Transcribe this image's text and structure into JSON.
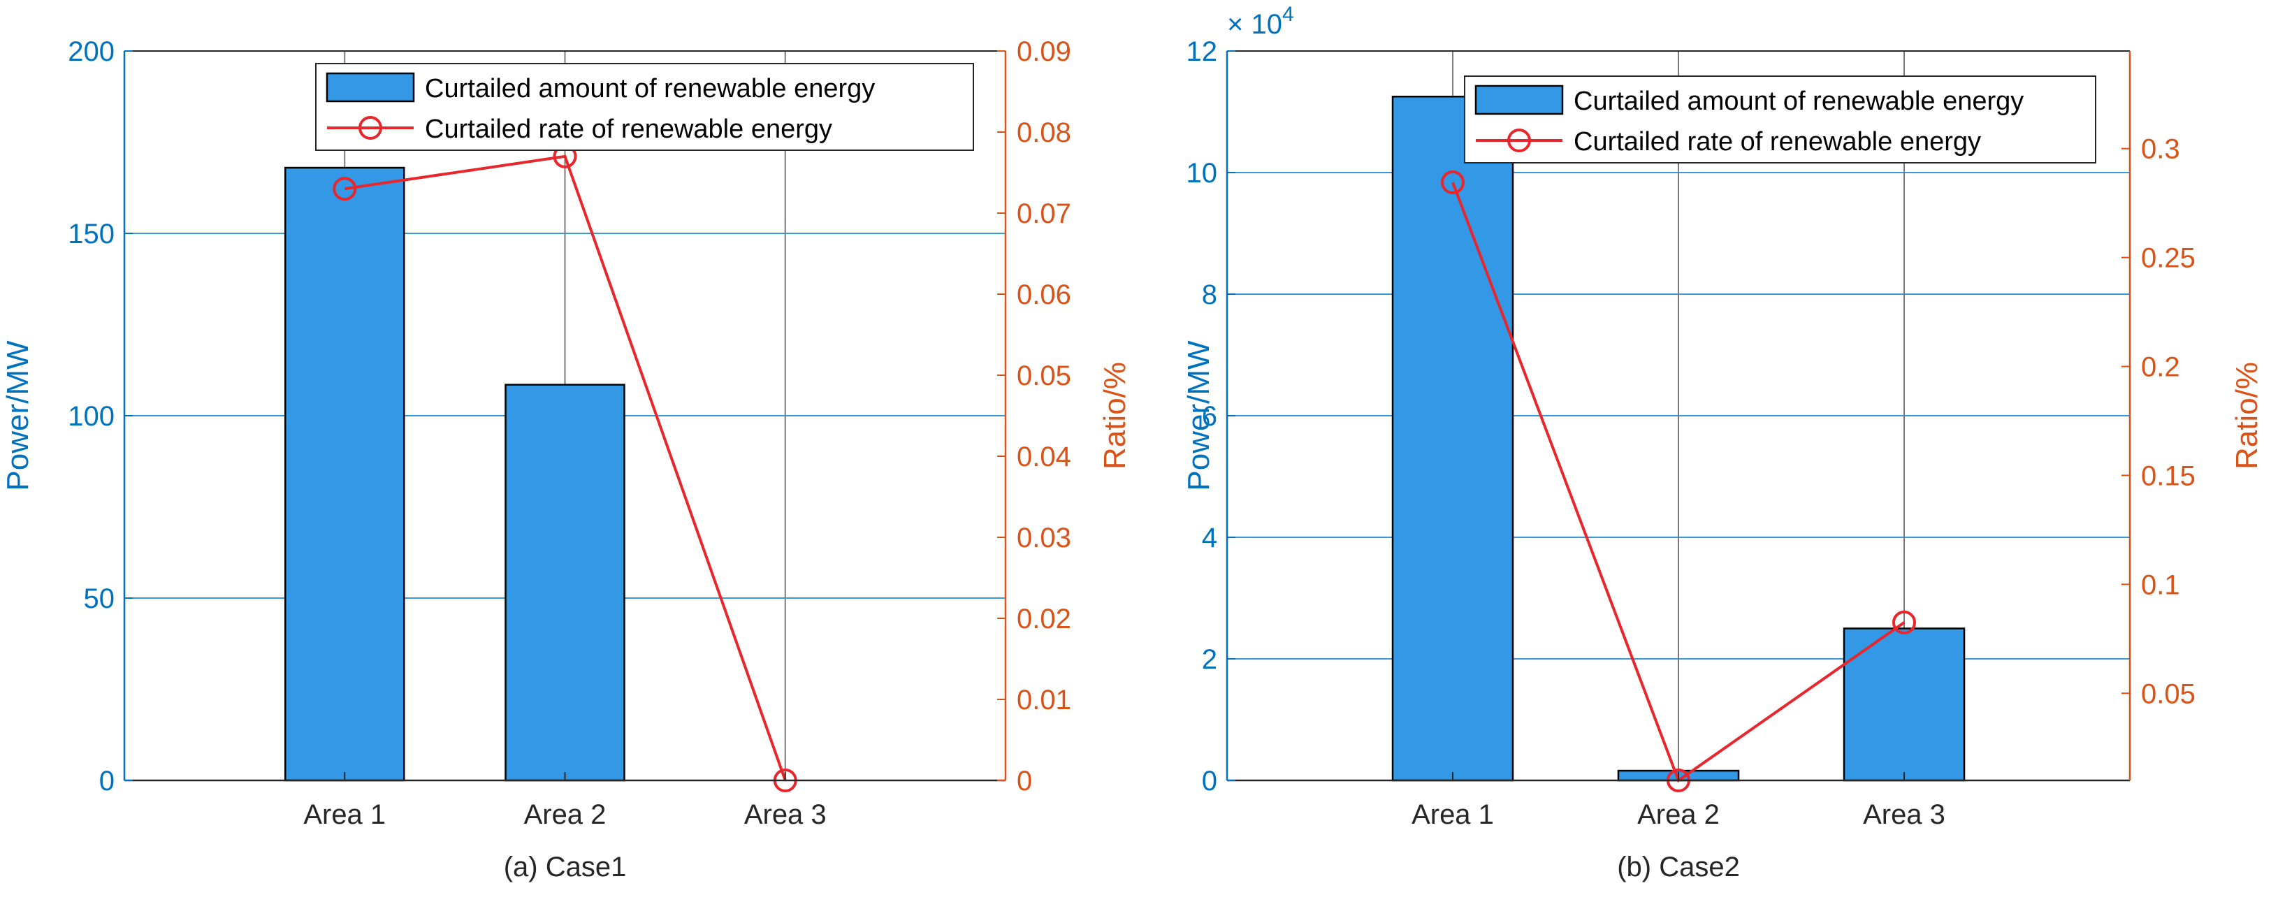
{
  "colors": {
    "bar": "#3399E6",
    "bar_edge": "#000000",
    "line": "#E8262B",
    "left_axis": "#0072BD",
    "right_axis": "#D95319",
    "grid_y": "#3A9AD9",
    "grid_x": "#7A7A7A"
  },
  "chart_data": [
    {
      "type": "bar",
      "caption": "(a) Case1",
      "categories": [
        "Area 1",
        "Area 2",
        "Area 3"
      ],
      "ylabel_left": "Power/MW",
      "ylabel_right": "Ratio/%",
      "ylim_left": [
        0,
        200
      ],
      "yticks_left": [
        {
          "v": 0,
          "t": "0"
        },
        {
          "v": 50,
          "t": "50"
        },
        {
          "v": 100,
          "t": "100"
        },
        {
          "v": 150,
          "t": "150"
        },
        {
          "v": 200,
          "t": "200"
        }
      ],
      "ylim_right": [
        0,
        0.09
      ],
      "yticks_right": [
        {
          "v": 0,
          "t": "0"
        },
        {
          "v": 0.01,
          "t": "0.01"
        },
        {
          "v": 0.02,
          "t": "0.02"
        },
        {
          "v": 0.03,
          "t": "0.03"
        },
        {
          "v": 0.04,
          "t": "0.04"
        },
        {
          "v": 0.05,
          "t": "0.05"
        },
        {
          "v": 0.06,
          "t": "0.06"
        },
        {
          "v": 0.07,
          "t": "0.07"
        },
        {
          "v": 0.08,
          "t": "0.08"
        },
        {
          "v": 0.09,
          "t": "0.09"
        }
      ],
      "exponent_label": "",
      "grid": true,
      "legend_position": "top-right",
      "series": [
        {
          "name": "Curtailed amount of renewable energy",
          "kind": "bar",
          "axis": "left",
          "values": [
            168,
            108.5,
            0
          ]
        },
        {
          "name": "Curtailed rate of renewable energy",
          "kind": "line",
          "axis": "right",
          "values": [
            0.073,
            0.077,
            0
          ]
        }
      ]
    },
    {
      "type": "bar",
      "caption": "(b) Case2",
      "categories": [
        "Area 1",
        "Area 2",
        "Area 3"
      ],
      "ylabel_left": "Power/MW",
      "ylabel_right": "Ratio/%",
      "ylim_left": [
        0,
        120000
      ],
      "yticks_left": [
        {
          "v": 0,
          "t": "0"
        },
        {
          "v": 20000,
          "t": "2"
        },
        {
          "v": 40000,
          "t": "4"
        },
        {
          "v": 60000,
          "t": "6"
        },
        {
          "v": 80000,
          "t": "8"
        },
        {
          "v": 100000,
          "t": "10"
        },
        {
          "v": 120000,
          "t": "12"
        }
      ],
      "ylim_right": [
        0.01,
        0.3448
      ],
      "yticks_right": [
        {
          "v": 0.05,
          "t": "0.05"
        },
        {
          "v": 0.1,
          "t": "0.1"
        },
        {
          "v": 0.15,
          "t": "0.15"
        },
        {
          "v": 0.2,
          "t": "0.2"
        },
        {
          "v": 0.25,
          "t": "0.25"
        },
        {
          "v": 0.3,
          "t": "0.3"
        }
      ],
      "exponent_label": "× 10",
      "exponent_power": "4",
      "grid": true,
      "legend_position": "top-right",
      "series": [
        {
          "name": "Curtailed amount of renewable energy",
          "kind": "bar",
          "axis": "left",
          "values": [
            112500,
            1600,
            25000
          ]
        },
        {
          "name": "Curtailed rate of renewable energy",
          "kind": "line",
          "axis": "right",
          "values": [
            0.2845,
            0.01,
            0.0825
          ]
        }
      ]
    }
  ]
}
